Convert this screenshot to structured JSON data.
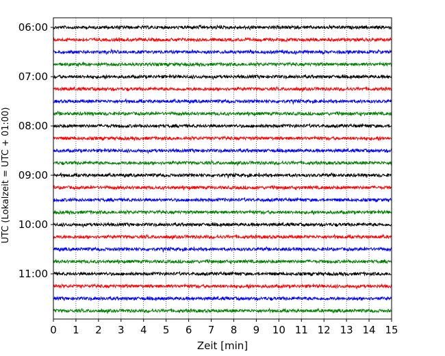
{
  "chart_data": {
    "type": "line",
    "title": "",
    "xlabel": "Zeit  [min]",
    "ylabel": "UTC (Lokalzeit = UTC + 01:00)",
    "xlim": [
      0,
      15
    ],
    "x_ticks": [
      0,
      1,
      2,
      3,
      4,
      5,
      6,
      7,
      8,
      9,
      10,
      11,
      12,
      13,
      14,
      15
    ],
    "y_tick_labels": [
      "06:00",
      "07:00",
      "08:00",
      "09:00",
      "10:00",
      "11:00"
    ],
    "grid": "vertical dotted at each minute",
    "trace_interval_min": 15,
    "trace_count": 24,
    "trace_start": "06:00",
    "trace_end": "11:45",
    "color_cycle": [
      "#000000",
      "#ff0000",
      "#0000ff",
      "#008000"
    ],
    "series": [
      {
        "start": "06:00"
      },
      {
        "start": "06:15"
      },
      {
        "start": "06:30"
      },
      {
        "start": "06:45"
      },
      {
        "start": "07:00"
      },
      {
        "start": "07:15"
      },
      {
        "start": "07:30"
      },
      {
        "start": "07:45"
      },
      {
        "start": "08:00"
      },
      {
        "start": "08:15"
      },
      {
        "start": "08:30"
      },
      {
        "start": "08:45"
      },
      {
        "start": "09:00"
      },
      {
        "start": "09:15"
      },
      {
        "start": "09:30"
      },
      {
        "start": "09:45"
      },
      {
        "start": "10:00"
      },
      {
        "start": "10:15"
      },
      {
        "start": "10:30"
      },
      {
        "start": "10:45"
      },
      {
        "start": "11:00"
      },
      {
        "start": "11:15"
      },
      {
        "start": "11:30"
      },
      {
        "start": "11:45"
      }
    ]
  }
}
